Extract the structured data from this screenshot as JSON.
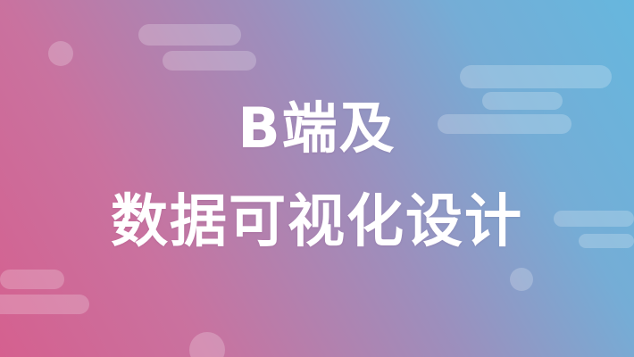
{
  "banner": {
    "title_line_1": "B端及",
    "title_line_2": "数据可视化设计",
    "colors": {
      "gradient_start": "#d5608f",
      "gradient_mid": "#9c8fbd",
      "gradient_end": "#66b7de",
      "text": "#ffffff",
      "decoration": "rgba(255,255,255,0.22)"
    }
  }
}
